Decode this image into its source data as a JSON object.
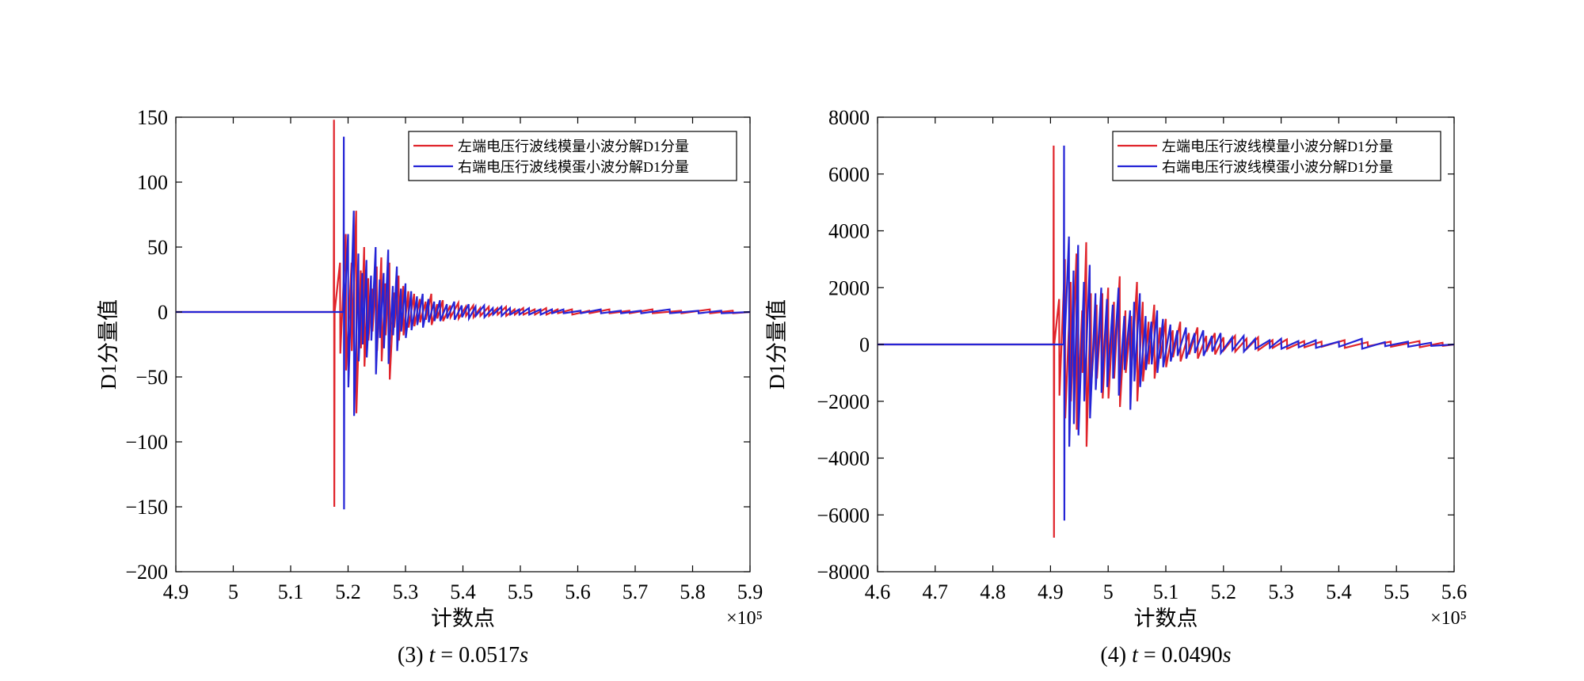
{
  "chart_data": [
    {
      "type": "line",
      "xlabel": "计数点",
      "ylabel": "D1分量值",
      "x_exponent_label": "×10⁵",
      "caption": {
        "prefix": "(3) ",
        "var": "t",
        "rest": " = 0.0517",
        "unit": "s"
      },
      "xlim": [
        4.9,
        5.9
      ],
      "ylim": [
        -200,
        150
      ],
      "xticks": [
        4.9,
        5.0,
        5.1,
        5.2,
        5.3,
        5.4,
        5.5,
        5.6,
        5.7,
        5.8,
        5.9
      ],
      "xtick_labels": [
        "4.9",
        "5",
        "5.1",
        "5.2",
        "5.3",
        "5.4",
        "5.5",
        "5.6",
        "5.7",
        "5.8",
        "5.9"
      ],
      "yticks": [
        150,
        100,
        50,
        0,
        -50,
        -100,
        -150,
        -200
      ],
      "ytick_labels": [
        "150",
        "100",
        "50",
        "0",
        "−50",
        "−100",
        "−150",
        "−200"
      ],
      "grid": false,
      "legend_position": "top-right",
      "series": [
        {
          "name": "左端电压行波线模量小波分解D1分量",
          "color": "#e0242b",
          "x": [
            4.9,
            5.175,
            5.1755,
            5.176,
            5.1765,
            5.186,
            5.1865,
            5.196,
            5.1965,
            5.206,
            5.2065,
            5.214,
            5.2145,
            5.222,
            5.2225,
            5.228,
            5.2285,
            5.235,
            5.2355,
            5.242,
            5.2425,
            5.25,
            5.2505,
            5.258,
            5.2585,
            5.265,
            5.2655,
            5.272,
            5.2725,
            5.28,
            5.2805,
            5.288,
            5.2885,
            5.296,
            5.2965,
            5.305,
            5.3055,
            5.315,
            5.3155,
            5.325,
            5.3255,
            5.335,
            5.3355,
            5.345,
            5.3455,
            5.355,
            5.3555,
            5.365,
            5.3655,
            5.378,
            5.3785,
            5.392,
            5.3925,
            5.405,
            5.4055,
            5.418,
            5.4185,
            5.43,
            5.4305,
            5.445,
            5.4455,
            5.46,
            5.4605,
            5.475,
            5.4755,
            5.49,
            5.4905,
            5.505,
            5.5055,
            5.525,
            5.5255,
            5.545,
            5.5455,
            5.565,
            5.5655,
            5.59,
            5.5905,
            5.62,
            5.6205,
            5.655,
            5.6555,
            5.69,
            5.6905,
            5.73,
            5.7305,
            5.78,
            5.7805,
            5.83,
            5.8305,
            5.87,
            5.8705,
            5.9
          ],
          "y": [
            0,
            0,
            148,
            -150,
            0,
            38,
            -32,
            60,
            -45,
            38,
            -30,
            78,
            -78,
            32,
            -28,
            50,
            -42,
            26,
            -22,
            18,
            -15,
            35,
            -30,
            42,
            -38,
            22,
            -18,
            38,
            -52,
            15,
            -12,
            28,
            -22,
            20,
            -18,
            16,
            -12,
            14,
            -11,
            10,
            -8,
            8,
            -6,
            14,
            -10,
            6,
            -5,
            9,
            -7,
            5,
            -4,
            7,
            -5,
            4,
            -3,
            5,
            -4,
            3,
            -3,
            4,
            -3,
            3,
            -2,
            4,
            -3,
            2,
            -2,
            3,
            -2,
            2,
            -2,
            3,
            -2,
            2,
            -1,
            2,
            -2,
            1,
            -1,
            2,
            -1,
            1,
            -1,
            2,
            -1,
            1,
            -1,
            2,
            -1,
            1,
            -1,
            0
          ]
        },
        {
          "name": "右端电压行波线模蛋小波分解D1分量",
          "color": "#2424d6",
          "x": [
            4.9,
            5.192,
            5.1925,
            5.193,
            5.1935,
            5.2,
            5.2005,
            5.21,
            5.2105,
            5.218,
            5.2185,
            5.225,
            5.2255,
            5.232,
            5.2325,
            5.24,
            5.2405,
            5.248,
            5.2485,
            5.255,
            5.2555,
            5.262,
            5.2625,
            5.27,
            5.2705,
            5.278,
            5.2785,
            5.285,
            5.2855,
            5.292,
            5.2925,
            5.3,
            5.3005,
            5.31,
            5.3105,
            5.32,
            5.3205,
            5.33,
            5.3305,
            5.34,
            5.3405,
            5.35,
            5.3505,
            5.36,
            5.3605,
            5.372,
            5.3725,
            5.385,
            5.3855,
            5.398,
            5.3985,
            5.41,
            5.4105,
            5.422,
            5.4225,
            5.437,
            5.4375,
            5.452,
            5.4525,
            5.467,
            5.4675,
            5.482,
            5.4825,
            5.498,
            5.4985,
            5.515,
            5.5155,
            5.535,
            5.5355,
            5.555,
            5.5555,
            5.575,
            5.5755,
            5.605,
            5.6055,
            5.64,
            5.6405,
            5.675,
            5.6755,
            5.71,
            5.7105,
            5.76,
            5.7605,
            5.81,
            5.8105,
            5.85,
            5.8505,
            5.9
          ],
          "y": [
            0,
            0,
            135,
            -152,
            0,
            60,
            -58,
            78,
            -80,
            45,
            -38,
            30,
            -25,
            40,
            -35,
            28,
            -22,
            50,
            -48,
            25,
            -20,
            30,
            -28,
            48,
            -40,
            20,
            -18,
            35,
            -30,
            18,
            -15,
            22,
            -20,
            16,
            -14,
            12,
            -10,
            14,
            -12,
            10,
            -8,
            8,
            -7,
            9,
            -7,
            6,
            -5,
            8,
            -6,
            5,
            -4,
            6,
            -5,
            4,
            -3,
            5,
            -4,
            3,
            -2,
            4,
            -3,
            3,
            -2,
            2,
            -2,
            3,
            -2,
            2,
            -2,
            2,
            -1,
            2,
            -1,
            1,
            -1,
            2,
            -1,
            1,
            -1,
            1,
            -1,
            2,
            -1,
            1,
            -1,
            1,
            -1,
            0
          ]
        }
      ]
    },
    {
      "type": "line",
      "xlabel": "计数点",
      "ylabel": "D1分量值",
      "x_exponent_label": "×10⁵",
      "caption": {
        "prefix": "(4) ",
        "var": "t",
        "rest": " = 0.0490",
        "unit": "s"
      },
      "xlim": [
        4.6,
        5.6
      ],
      "ylim": [
        -8000,
        8000
      ],
      "xticks": [
        4.6,
        4.7,
        4.8,
        4.9,
        5.0,
        5.1,
        5.2,
        5.3,
        5.4,
        5.5,
        5.6
      ],
      "xtick_labels": [
        "4.6",
        "4.7",
        "4.8",
        "4.9",
        "5",
        "5.1",
        "5.2",
        "5.3",
        "5.4",
        "5.5",
        "5.6"
      ],
      "yticks": [
        8000,
        6000,
        4000,
        2000,
        0,
        -2000,
        -4000,
        -6000,
        -8000
      ],
      "ytick_labels": [
        "8000",
        "6000",
        "4000",
        "2000",
        "0",
        "−2000",
        "−4000",
        "−6000",
        "−8000"
      ],
      "grid": false,
      "legend_position": "top-right",
      "series": [
        {
          "name": "左端电压行波线模量小波分解D1分量",
          "color": "#e0242b",
          "x": [
            4.6,
            4.905,
            4.9055,
            4.906,
            4.9065,
            4.915,
            4.9155,
            4.925,
            4.9255,
            4.935,
            4.9355,
            4.945,
            4.9455,
            4.955,
            4.9555,
            4.962,
            4.9625,
            4.97,
            4.9705,
            4.98,
            4.9805,
            4.99,
            4.9905,
            5.0,
            5.0005,
            5.01,
            5.0105,
            5.02,
            5.0205,
            5.03,
            5.0305,
            5.04,
            5.0405,
            5.05,
            5.0505,
            5.06,
            5.0605,
            5.07,
            5.0705,
            5.08,
            5.0805,
            5.09,
            5.0905,
            5.1,
            5.1005,
            5.112,
            5.1125,
            5.125,
            5.1255,
            5.14,
            5.1405,
            5.155,
            5.1555,
            5.17,
            5.1705,
            5.185,
            5.1855,
            5.2,
            5.2005,
            5.22,
            5.2205,
            5.24,
            5.2405,
            5.26,
            5.2605,
            5.285,
            5.2855,
            5.31,
            5.3105,
            5.34,
            5.3405,
            5.37,
            5.3705,
            5.41,
            5.4105,
            5.45,
            5.4505,
            5.49,
            5.4905,
            5.54,
            5.5405,
            5.58,
            5.5805,
            5.6
          ],
          "y": [
            0,
            0,
            7000,
            -6800,
            0,
            1600,
            -1800,
            3000,
            -2600,
            2200,
            -2000,
            3200,
            -3000,
            1200,
            -1000,
            3600,
            -3600,
            1800,
            -1500,
            1400,
            -1200,
            1800,
            -1900,
            2000,
            -1900,
            1500,
            -1200,
            2400,
            -2200,
            1200,
            -1000,
            1000,
            -900,
            2200,
            -2000,
            1500,
            -1300,
            800,
            -700,
            1400,
            -1200,
            600,
            -500,
            900,
            -800,
            500,
            -450,
            800,
            -600,
            400,
            -350,
            600,
            -500,
            300,
            -250,
            400,
            -350,
            250,
            -200,
            300,
            -250,
            200,
            -150,
            250,
            -200,
            150,
            -120,
            180,
            -150,
            120,
            -100,
            100,
            -80,
            150,
            -120,
            80,
            -60,
            100,
            -80,
            120,
            -100,
            60,
            -50,
            0
          ]
        },
        {
          "name": "右端电压行波线模蛋小波分解D1分量",
          "color": "#2424d6",
          "x": [
            4.6,
            4.923,
            4.9235,
            4.924,
            4.9245,
            4.932,
            4.9325,
            4.94,
            4.9405,
            4.948,
            4.9485,
            4.958,
            4.9585,
            4.968,
            4.9685,
            4.978,
            4.9785,
            4.988,
            4.9885,
            4.998,
            4.9985,
            5.008,
            5.0085,
            5.018,
            5.0185,
            5.028,
            5.0285,
            5.038,
            5.0385,
            5.045,
            5.0455,
            5.055,
            5.0555,
            5.065,
            5.0655,
            5.075,
            5.0755,
            5.085,
            5.0855,
            5.095,
            5.0955,
            5.108,
            5.1085,
            5.12,
            5.1205,
            5.135,
            5.1355,
            5.15,
            5.1505,
            5.165,
            5.1655,
            5.18,
            5.1805,
            5.195,
            5.1955,
            5.215,
            5.2155,
            5.235,
            5.2355,
            5.255,
            5.2555,
            5.28,
            5.2805,
            5.3,
            5.3005,
            5.33,
            5.3305,
            5.36,
            5.3605,
            5.4,
            5.4005,
            5.44,
            5.4405,
            5.48,
            5.4805,
            5.52,
            5.5205,
            5.56,
            5.5605,
            5.6
          ],
          "y": [
            0,
            0,
            7000,
            -6200,
            0,
            3800,
            -3600,
            2600,
            -2800,
            3500,
            -3200,
            2200,
            -2000,
            2800,
            -2600,
            1800,
            -1600,
            2000,
            -1700,
            1600,
            -1500,
            1400,
            -1200,
            2000,
            -1800,
            1000,
            -900,
            1200,
            -2300,
            1500,
            -1300,
            1800,
            -1500,
            1000,
            -900,
            800,
            -700,
            1200,
            -1000,
            900,
            -800,
            700,
            -600,
            500,
            -400,
            600,
            -500,
            400,
            -300,
            500,
            -400,
            300,
            -250,
            400,
            -300,
            250,
            -200,
            300,
            -250,
            200,
            -150,
            150,
            -120,
            200,
            -150,
            120,
            -100,
            150,
            -120,
            100,
            -80,
            200,
            -150,
            80,
            -60,
            100,
            -80,
            60,
            -50,
            0
          ]
        }
      ]
    }
  ]
}
